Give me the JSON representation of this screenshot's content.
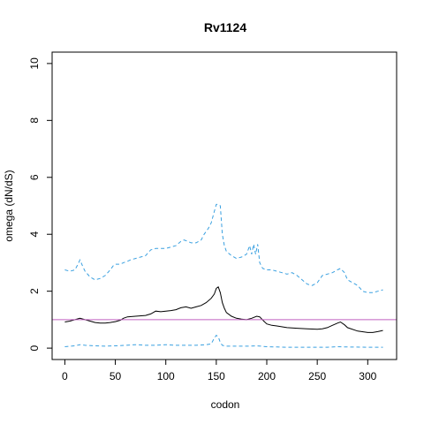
{
  "chart_data": {
    "type": "line",
    "title": "Rv1124",
    "xlabel": "codon",
    "ylabel": "omega (dN/dS)",
    "xlim": [
      0,
      320
    ],
    "ylim": [
      0,
      10
    ],
    "x_ticks": [
      0,
      50,
      100,
      150,
      200,
      250,
      300
    ],
    "y_ticks": [
      0,
      2,
      4,
      6,
      8,
      10
    ],
    "reference_line": {
      "y": 1,
      "color": "#c060c0"
    },
    "grid": false,
    "legend": "none",
    "series": [
      {
        "role": "mean",
        "color": "#000000",
        "dash": "solid",
        "x": [
          0,
          5,
          10,
          15,
          20,
          25,
          30,
          35,
          40,
          45,
          50,
          55,
          58,
          62,
          70,
          80,
          85,
          90,
          95,
          100,
          105,
          110,
          115,
          120,
          125,
          130,
          135,
          140,
          145,
          148,
          150,
          152,
          154,
          156,
          158,
          160,
          165,
          170,
          175,
          180,
          185,
          190,
          193,
          197,
          200,
          205,
          210,
          220,
          230,
          240,
          250,
          255,
          260,
          265,
          270,
          273,
          277,
          280,
          290,
          300,
          305,
          310,
          315
        ],
        "y": [
          0.92,
          0.95,
          1.0,
          1.05,
          1.0,
          0.95,
          0.9,
          0.88,
          0.88,
          0.9,
          0.93,
          0.98,
          1.05,
          1.1,
          1.12,
          1.15,
          1.2,
          1.3,
          1.28,
          1.3,
          1.32,
          1.35,
          1.42,
          1.45,
          1.4,
          1.45,
          1.5,
          1.6,
          1.75,
          1.9,
          2.1,
          2.15,
          1.95,
          1.6,
          1.4,
          1.25,
          1.12,
          1.05,
          1.02,
          1.0,
          1.05,
          1.12,
          1.1,
          0.95,
          0.85,
          0.8,
          0.78,
          0.72,
          0.7,
          0.68,
          0.66,
          0.68,
          0.72,
          0.8,
          0.88,
          0.92,
          0.82,
          0.72,
          0.6,
          0.55,
          0.55,
          0.58,
          0.62
        ]
      },
      {
        "role": "upper",
        "color": "#3aa0e0",
        "dash": "dashed",
        "x": [
          0,
          5,
          10,
          13,
          15,
          18,
          20,
          25,
          30,
          35,
          40,
          45,
          48,
          50,
          55,
          58,
          62,
          65,
          70,
          75,
          80,
          85,
          90,
          95,
          100,
          105,
          110,
          115,
          118,
          122,
          125,
          130,
          135,
          138,
          142,
          145,
          148,
          150,
          152,
          154,
          156,
          158,
          160,
          165,
          170,
          175,
          180,
          183,
          185,
          187,
          189,
          191,
          193,
          196,
          200,
          205,
          210,
          215,
          220,
          225,
          230,
          235,
          240,
          245,
          250,
          255,
          260,
          265,
          270,
          273,
          277,
          280,
          285,
          290,
          295,
          300,
          305,
          310,
          315
        ],
        "y": [
          2.75,
          2.7,
          2.75,
          2.95,
          3.1,
          2.85,
          2.7,
          2.5,
          2.4,
          2.45,
          2.55,
          2.75,
          2.9,
          2.95,
          2.95,
          3.0,
          3.05,
          3.1,
          3.15,
          3.2,
          3.25,
          3.45,
          3.5,
          3.5,
          3.5,
          3.55,
          3.6,
          3.75,
          3.8,
          3.75,
          3.7,
          3.7,
          3.8,
          4.0,
          4.2,
          4.4,
          4.8,
          5.05,
          5.05,
          5.0,
          4.0,
          3.6,
          3.4,
          3.25,
          3.15,
          3.2,
          3.3,
          3.6,
          3.3,
          3.65,
          3.3,
          3.65,
          3.0,
          2.8,
          2.75,
          2.75,
          2.7,
          2.65,
          2.6,
          2.65,
          2.55,
          2.4,
          2.25,
          2.2,
          2.3,
          2.55,
          2.6,
          2.65,
          2.75,
          2.8,
          2.65,
          2.4,
          2.3,
          2.2,
          2.0,
          1.95,
          1.95,
          2.0,
          2.05
        ]
      },
      {
        "role": "lower",
        "color": "#3aa0e0",
        "dash": "dashed",
        "x": [
          0,
          10,
          15,
          20,
          30,
          40,
          50,
          60,
          70,
          80,
          90,
          100,
          110,
          120,
          130,
          140,
          145,
          148,
          150,
          152,
          154,
          156,
          158,
          160,
          170,
          180,
          190,
          200,
          210,
          220,
          240,
          260,
          270,
          280,
          300,
          315
        ],
        "y": [
          0.05,
          0.08,
          0.12,
          0.1,
          0.08,
          0.07,
          0.08,
          0.1,
          0.12,
          0.1,
          0.1,
          0.12,
          0.1,
          0.1,
          0.1,
          0.12,
          0.15,
          0.35,
          0.45,
          0.4,
          0.2,
          0.1,
          0.08,
          0.07,
          0.07,
          0.07,
          0.08,
          0.05,
          0.04,
          0.03,
          0.03,
          0.03,
          0.05,
          0.04,
          0.03,
          0.03
        ]
      }
    ]
  }
}
